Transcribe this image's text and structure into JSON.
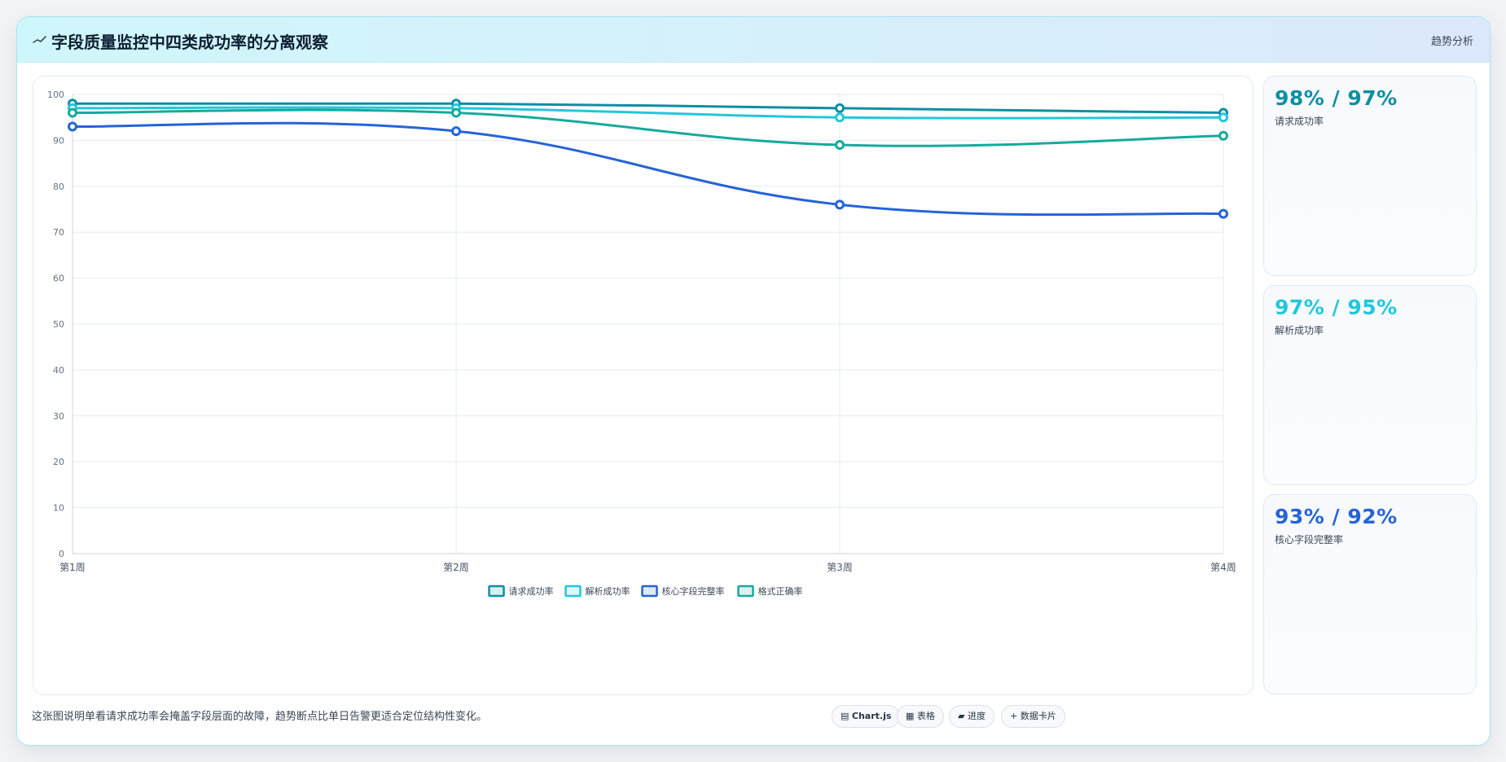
{
  "header": {
    "title": "字段质量监控中四类成功率的分离观察",
    "tag": "趋势分析"
  },
  "chart_data": {
    "type": "line",
    "categories": [
      "第1周",
      "第2周",
      "第3周",
      "第4周"
    ],
    "ylim": [
      0,
      100
    ],
    "yticks": [
      0,
      10,
      20,
      30,
      40,
      50,
      60,
      70,
      80,
      90,
      100
    ],
    "grid": true,
    "legend_position": "bottom-center",
    "series": [
      {
        "name": "请求成功率",
        "color": "#0e8ea3",
        "values": [
          98,
          98,
          97,
          96
        ]
      },
      {
        "name": "解析成功率",
        "color": "#22c7dc",
        "values": [
          97,
          97,
          95,
          95
        ]
      },
      {
        "name": "核心字段完整率",
        "color": "#2563d9",
        "values": [
          93,
          92,
          76,
          74
        ]
      },
      {
        "name": "格式正确率",
        "color": "#16aa9b",
        "values": [
          96,
          96,
          89,
          91
        ]
      }
    ]
  },
  "kpis": [
    {
      "value": "98% / 97%",
      "label": "请求成功率",
      "color": "#0e8ea3"
    },
    {
      "value": "97% / 95%",
      "label": "解析成功率",
      "color": "#22c7dc"
    },
    {
      "value": "93% / 92%",
      "label": "核心字段完整率",
      "color": "#2563d9"
    }
  ],
  "footer": {
    "note": "这张图说明单看请求成功率会掩盖字段层面的故障，趋势断点比单日告警更适合定位结构性变化。",
    "pills": [
      {
        "icon": "▤",
        "label": "Chart.js"
      },
      {
        "icon": "▦",
        "label": "表格"
      },
      {
        "icon": "▰",
        "label": "进度"
      },
      {
        "icon": "+",
        "label": "数据卡片"
      }
    ]
  }
}
